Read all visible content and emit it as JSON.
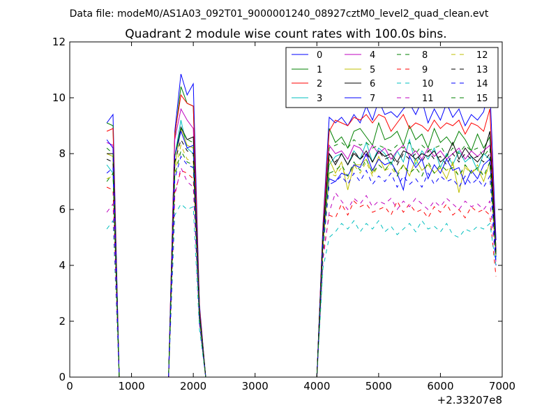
{
  "figure": {
    "suptitle": "Data file: modeM0/AS1A03_092T01_9000001240_08927cztM0_level2_quad_clean.evt"
  },
  "chart_data": {
    "type": "line",
    "title": "Quadrant 2 module wise count rates with 100.0s bins.",
    "xlabel": "",
    "ylabel": "",
    "x_offset_label": "+2.33207e8",
    "xlim": [
      0,
      7000
    ],
    "ylim": [
      0,
      12
    ],
    "xticks": [
      0,
      1000,
      2000,
      3000,
      4000,
      5000,
      6000,
      7000
    ],
    "yticks": [
      0,
      2,
      4,
      6,
      8,
      10,
      12
    ],
    "grid": false,
    "legend_placement": "top-right",
    "legend_columns": 4,
    "x": [
      600,
      700,
      800,
      900,
      1000,
      1100,
      1200,
      1300,
      1400,
      1500,
      1600,
      1700,
      1800,
      1900,
      2000,
      2100,
      2200,
      2300,
      2400,
      2500,
      2600,
      2700,
      2800,
      2900,
      3000,
      3100,
      3200,
      3300,
      3400,
      3500,
      3600,
      3700,
      3800,
      3900,
      4000,
      4100,
      4200,
      4300,
      4400,
      4500,
      4600,
      4700,
      4800,
      4900,
      5000,
      5100,
      5200,
      5300,
      5400,
      5500,
      5600,
      5700,
      5800,
      5900,
      6000,
      6100,
      6200,
      6300,
      6400,
      6500,
      6600,
      6700,
      6800,
      6900
    ],
    "series": [
      {
        "name": "0",
        "color": "#0000ff",
        "dash": "solid",
        "values": [
          9.1,
          9.4,
          0,
          0,
          0,
          0,
          0,
          0,
          0,
          0,
          0,
          8.8,
          10.85,
          10.1,
          10.5,
          2.6,
          0,
          0,
          0,
          0,
          0,
          0,
          0,
          0,
          0,
          0,
          0,
          0,
          0,
          0,
          0,
          0,
          0,
          0,
          0,
          5.5,
          9.3,
          9.1,
          9.3,
          9.0,
          9.4,
          9.1,
          9.7,
          9.2,
          9.9,
          9.4,
          9.5,
          9.3,
          9.6,
          9.8,
          9.4,
          9.9,
          9.1,
          9.6,
          9.2,
          9.8,
          9.3,
          9.6,
          9.0,
          9.4,
          9.2,
          9.5,
          10.4,
          4.9
        ]
      },
      {
        "name": "1",
        "color": "#008000",
        "dash": "solid",
        "values": [
          9.1,
          9.0,
          0,
          0,
          0,
          0,
          0,
          0,
          0,
          0,
          0,
          8.6,
          10.4,
          9.8,
          9.7,
          2.5,
          0,
          0,
          0,
          0,
          0,
          0,
          0,
          0,
          0,
          0,
          0,
          0,
          0,
          0,
          0,
          0,
          0,
          0,
          0,
          5.3,
          8.9,
          8.4,
          8.6,
          8.2,
          8.8,
          8.9,
          8.6,
          8.3,
          9.1,
          8.5,
          8.6,
          8.8,
          8.3,
          9.0,
          8.5,
          8.7,
          8.2,
          8.9,
          8.4,
          8.6,
          8.3,
          8.8,
          8.5,
          8.1,
          8.7,
          8.2,
          8.6,
          4.6
        ]
      },
      {
        "name": "2",
        "color": "#ff0000",
        "dash": "solid",
        "values": [
          8.8,
          8.9,
          0,
          0,
          0,
          0,
          0,
          0,
          0,
          0,
          0,
          8.7,
          10.1,
          9.8,
          9.7,
          2.5,
          0,
          0,
          0,
          0,
          0,
          0,
          0,
          0,
          0,
          0,
          0,
          0,
          0,
          0,
          0,
          0,
          0,
          0,
          0,
          5.4,
          8.8,
          9.2,
          9.1,
          9.0,
          9.3,
          9.2,
          9.4,
          9.1,
          9.4,
          9.3,
          8.8,
          9.1,
          9.4,
          8.9,
          9.1,
          9.0,
          8.8,
          9.2,
          8.9,
          9.1,
          9.0,
          9.2,
          8.7,
          9.1,
          9.0,
          8.8,
          9.6,
          4.5
        ]
      },
      {
        "name": "3",
        "color": "#00bfbf",
        "dash": "solid",
        "values": [
          7.6,
          7.3,
          0,
          0,
          0,
          0,
          0,
          0,
          0,
          0,
          0,
          7.9,
          9.2,
          8.2,
          8.0,
          2.2,
          0,
          0,
          0,
          0,
          0,
          0,
          0,
          0,
          0,
          0,
          0,
          0,
          0,
          0,
          0,
          0,
          0,
          0,
          0,
          4.9,
          7.6,
          7.9,
          8.0,
          7.6,
          8.1,
          7.8,
          8.4,
          7.7,
          8.2,
          8.0,
          7.6,
          8.1,
          7.7,
          8.5,
          7.6,
          8.1,
          7.8,
          8.2,
          7.5,
          8.0,
          7.6,
          8.1,
          7.7,
          7.9,
          7.4,
          8.0,
          7.8,
          4.2
        ]
      },
      {
        "name": "4",
        "color": "#bf00bf",
        "dash": "solid",
        "values": [
          8.4,
          8.3,
          0,
          0,
          0,
          0,
          0,
          0,
          0,
          0,
          0,
          8.5,
          9.6,
          9.2,
          8.9,
          2.4,
          0,
          0,
          0,
          0,
          0,
          0,
          0,
          0,
          0,
          0,
          0,
          0,
          0,
          0,
          0,
          0,
          0,
          0,
          0,
          5.3,
          8.3,
          8.0,
          8.1,
          7.8,
          8.3,
          8.2,
          7.9,
          8.3,
          8.0,
          8.2,
          7.8,
          8.1,
          8.3,
          7.9,
          8.1,
          7.8,
          8.2,
          7.9,
          8.1,
          7.8,
          8.0,
          8.2,
          7.8,
          8.1,
          7.9,
          8.1,
          8.3,
          4.6
        ]
      },
      {
        "name": "5",
        "color": "#bfbf00",
        "dash": "solid",
        "values": [
          8.0,
          7.9,
          0,
          0,
          0,
          0,
          0,
          0,
          0,
          0,
          0,
          7.5,
          8.9,
          8.3,
          8.2,
          2.2,
          0,
          0,
          0,
          0,
          0,
          0,
          0,
          0,
          0,
          0,
          0,
          0,
          0,
          0,
          0,
          0,
          0,
          0,
          0,
          5.0,
          7.8,
          7.3,
          7.7,
          6.7,
          7.6,
          7.6,
          7.8,
          7.3,
          7.9,
          7.4,
          7.7,
          7.3,
          7.6,
          7.2,
          7.8,
          7.4,
          7.6,
          7.3,
          7.5,
          7.1,
          7.7,
          6.6,
          7.6,
          7.3,
          7.5,
          7.0,
          7.7,
          4.3
        ]
      },
      {
        "name": "6",
        "color": "#000000",
        "dash": "solid",
        "values": [
          8.0,
          8.0,
          0,
          0,
          0,
          0,
          0,
          0,
          0,
          0,
          0,
          7.9,
          8.95,
          8.5,
          8.6,
          2.3,
          0,
          0,
          0,
          0,
          0,
          0,
          0,
          0,
          0,
          0,
          0,
          0,
          0,
          0,
          0,
          0,
          0,
          0,
          0,
          5.1,
          8.0,
          7.6,
          8.0,
          7.6,
          8.0,
          7.8,
          8.1,
          7.7,
          8.1,
          7.9,
          8.0,
          7.7,
          8.1,
          8.0,
          7.8,
          8.0,
          7.9,
          8.1,
          7.7,
          7.9,
          8.4,
          7.8,
          8.2,
          7.9,
          7.7,
          8.0,
          8.8,
          4.4
        ]
      },
      {
        "name": "7",
        "color": "#0000ff",
        "dash": "solid",
        "values": [
          8.5,
          8.2,
          0,
          0,
          0,
          0,
          0,
          0,
          0,
          0,
          0,
          7.9,
          8.8,
          8.2,
          8.3,
          2.2,
          0,
          0,
          0,
          0,
          0,
          0,
          0,
          0,
          0,
          0,
          0,
          0,
          0,
          0,
          0,
          0,
          0,
          0,
          0,
          5.0,
          7.1,
          7.0,
          7.3,
          7.2,
          7.6,
          7.5,
          8.0,
          7.4,
          7.8,
          7.6,
          7.7,
          7.3,
          6.7,
          7.9,
          7.5,
          7.8,
          7.1,
          7.6,
          7.3,
          7.8,
          7.4,
          7.5,
          6.9,
          7.4,
          7.1,
          7.6,
          7.8,
          4.3
        ]
      },
      {
        "name": "8",
        "color": "#008000",
        "dash": "dashed",
        "values": [
          8.2,
          8.0,
          0,
          0,
          0,
          0,
          0,
          0,
          0,
          0,
          0,
          7.9,
          8.9,
          8.5,
          8.4,
          2.3,
          0,
          0,
          0,
          0,
          0,
          0,
          0,
          0,
          0,
          0,
          0,
          0,
          0,
          0,
          0,
          0,
          0,
          0,
          0,
          5.2,
          8.2,
          8.3,
          8.4,
          8.2,
          8.5,
          8.3,
          8.4,
          8.2,
          8.3,
          8.2,
          8.1,
          8.3,
          8.2,
          8.4,
          8.0,
          8.3,
          8.1,
          8.2,
          8.3,
          7.9,
          8.2,
          8.0,
          8.3,
          8.1,
          8.2,
          7.9,
          8.2,
          4.5
        ]
      },
      {
        "name": "9",
        "color": "#ff0000",
        "dash": "dashed",
        "values": [
          6.8,
          6.7,
          0,
          0,
          0,
          0,
          0,
          0,
          0,
          0,
          0,
          6.6,
          7.4,
          7.3,
          7.1,
          2.0,
          0,
          0,
          0,
          0,
          0,
          0,
          0,
          0,
          0,
          0,
          0,
          0,
          0,
          0,
          0,
          0,
          0,
          0,
          0,
          4.4,
          5.8,
          5.7,
          6.2,
          5.8,
          6.3,
          6.1,
          6.2,
          5.9,
          6.0,
          6.1,
          5.8,
          6.3,
          5.9,
          6.2,
          5.9,
          6.0,
          5.7,
          6.1,
          5.9,
          6.2,
          5.8,
          6.0,
          5.7,
          6.1,
          5.9,
          6.0,
          5.8,
          3.6
        ]
      },
      {
        "name": "10",
        "color": "#00bfbf",
        "dash": "dashed",
        "values": [
          5.3,
          5.6,
          0,
          0,
          0,
          0,
          0,
          0,
          0,
          0,
          0,
          5.8,
          6.2,
          6.0,
          6.1,
          1.7,
          0,
          0,
          0,
          0,
          0,
          0,
          0,
          0,
          0,
          0,
          0,
          0,
          0,
          0,
          0,
          0,
          0,
          0,
          0,
          3.9,
          5.0,
          5.2,
          5.5,
          5.3,
          5.6,
          5.2,
          5.5,
          5.3,
          5.6,
          5.2,
          5.4,
          5.1,
          5.3,
          5.5,
          5.2,
          5.6,
          5.3,
          5.4,
          5.2,
          5.5,
          5.1,
          5.0,
          5.3,
          5.2,
          5.4,
          5.3,
          5.5,
          4.0
        ]
      },
      {
        "name": "11",
        "color": "#bf00bf",
        "dash": "dashed",
        "values": [
          5.9,
          6.2,
          0,
          0,
          0,
          0,
          0,
          0,
          0,
          0,
          0,
          6.5,
          7.5,
          7.0,
          6.8,
          1.9,
          0,
          0,
          0,
          0,
          0,
          0,
          0,
          0,
          0,
          0,
          0,
          0,
          0,
          0,
          0,
          0,
          0,
          0,
          0,
          4.2,
          5.9,
          6.6,
          6.3,
          6.0,
          6.4,
          6.2,
          6.5,
          6.1,
          6.3,
          6.2,
          6.4,
          6.0,
          6.3,
          6.1,
          6.4,
          6.2,
          6.0,
          6.3,
          6.1,
          6.4,
          6.2,
          6.0,
          6.3,
          6.1,
          6.2,
          6.0,
          6.3,
          4.1
        ]
      },
      {
        "name": "12",
        "color": "#bfbf00",
        "dash": "dashed",
        "values": [
          7.1,
          7.2,
          0,
          0,
          0,
          0,
          0,
          0,
          0,
          0,
          0,
          7.3,
          8.3,
          7.8,
          7.7,
          2.1,
          0,
          0,
          0,
          0,
          0,
          0,
          0,
          0,
          0,
          0,
          0,
          0,
          0,
          0,
          0,
          0,
          0,
          0,
          0,
          4.7,
          7.3,
          7.2,
          7.5,
          7.1,
          7.6,
          7.3,
          7.7,
          7.2,
          7.6,
          7.4,
          7.5,
          7.2,
          7.6,
          7.3,
          7.5,
          7.2,
          7.7,
          7.3,
          7.5,
          7.4,
          7.6,
          7.2,
          7.5,
          7.3,
          7.6,
          7.2,
          7.5,
          4.2
        ]
      },
      {
        "name": "13",
        "color": "#000000",
        "dash": "dashed",
        "values": [
          7.8,
          7.7,
          0,
          0,
          0,
          0,
          0,
          0,
          0,
          0,
          0,
          7.7,
          8.5,
          8.1,
          8.0,
          2.2,
          0,
          0,
          0,
          0,
          0,
          0,
          0,
          0,
          0,
          0,
          0,
          0,
          0,
          0,
          0,
          0,
          0,
          0,
          0,
          5.0,
          8.0,
          7.7,
          8.0,
          7.6,
          8.1,
          7.8,
          8.0,
          7.7,
          8.1,
          7.8,
          7.9,
          7.6,
          8.0,
          7.8,
          8.0,
          7.7,
          8.1,
          7.8,
          7.9,
          7.6,
          8.0,
          7.7,
          8.0,
          7.8,
          7.9,
          7.7,
          8.0,
          4.4
        ]
      },
      {
        "name": "14",
        "color": "#0000ff",
        "dash": "dashed",
        "values": [
          7.3,
          7.5,
          0,
          0,
          0,
          0,
          0,
          0,
          0,
          0,
          0,
          7.1,
          7.9,
          7.6,
          7.5,
          2.0,
          0,
          0,
          0,
          0,
          0,
          0,
          0,
          0,
          0,
          0,
          0,
          0,
          0,
          0,
          0,
          0,
          0,
          0,
          0,
          4.6,
          6.9,
          7.0,
          7.2,
          6.9,
          7.3,
          7.0,
          7.4,
          6.9,
          7.2,
          7.0,
          7.3,
          6.8,
          7.2,
          6.9,
          7.1,
          6.8,
          7.3,
          6.9,
          7.2,
          7.0,
          7.1,
          6.8,
          7.2,
          6.9,
          7.1,
          6.8,
          7.2,
          4.0
        ]
      },
      {
        "name": "15",
        "color": "#008000",
        "dash": "dashed",
        "values": [
          7.0,
          7.3,
          0,
          0,
          0,
          0,
          0,
          0,
          0,
          0,
          0,
          7.2,
          8.1,
          7.7,
          7.6,
          2.1,
          0,
          0,
          0,
          0,
          0,
          0,
          0,
          0,
          0,
          0,
          0,
          0,
          0,
          0,
          0,
          0,
          0,
          0,
          0,
          4.5,
          7.3,
          7.4,
          7.6,
          7.2,
          7.7,
          7.4,
          7.8,
          7.3,
          7.6,
          7.4,
          7.7,
          7.2,
          7.6,
          7.3,
          7.5,
          7.2,
          7.7,
          7.3,
          7.6,
          7.4,
          7.5,
          7.2,
          7.6,
          7.3,
          7.5,
          7.2,
          7.7,
          4.3
        ]
      }
    ]
  }
}
